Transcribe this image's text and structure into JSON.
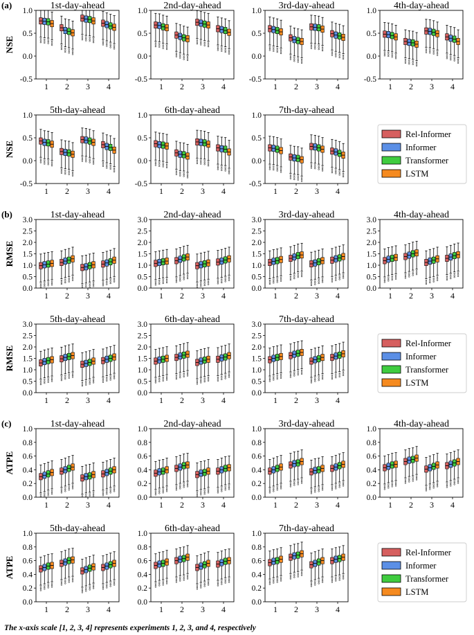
{
  "panel_labels": [
    "(a)",
    "(b)",
    "(c)"
  ],
  "footnote": "The x-axis scale [1, 2, 3, 4] represents experiments 1, 2, 3, and 4, respectively",
  "legend": [
    "Rel-Informer",
    "Informer",
    "Transformer",
    "LSTM"
  ],
  "colors": {
    "Rel-Informer": "#d65f5f",
    "Informer": "#5b8fe6",
    "Transformer": "#3fcc3f",
    "LSTM": "#f58a1f"
  },
  "chart_data": [
    {
      "type": "box",
      "metric": "NSE",
      "ylabel": "NSE",
      "ylim": [
        -0.5,
        1.0
      ],
      "yticks": [
        "-0.5",
        "0.0",
        "0.5",
        "1.0"
      ],
      "x": [
        "1",
        "2",
        "3",
        "4"
      ],
      "series_names": [
        "Rel-Informer",
        "Informer",
        "Transformer",
        "LSTM"
      ],
      "subplots": [
        {
          "title": "1st-day-ahead",
          "medians": [
            [
              0.77,
              0.76,
              0.75,
              0.71
            ],
            [
              0.62,
              0.56,
              0.54,
              0.51
            ],
            [
              0.83,
              0.81,
              0.8,
              0.77
            ],
            [
              0.72,
              0.69,
              0.66,
              0.63
            ]
          ]
        },
        {
          "title": "2nd-day-ahead",
          "medians": [
            [
              0.68,
              0.67,
              0.64,
              0.62
            ],
            [
              0.46,
              0.43,
              0.4,
              0.38
            ],
            [
              0.74,
              0.72,
              0.7,
              0.68
            ],
            [
              0.6,
              0.58,
              0.56,
              0.52
            ]
          ]
        },
        {
          "title": "3rd-day-ahead",
          "medians": [
            [
              0.6,
              0.58,
              0.56,
              0.53
            ],
            [
              0.4,
              0.36,
              0.34,
              0.32
            ],
            [
              0.64,
              0.63,
              0.62,
              0.59
            ],
            [
              0.49,
              0.46,
              0.44,
              0.41
            ]
          ]
        },
        {
          "title": "4th-day-ahead",
          "medians": [
            [
              0.48,
              0.47,
              0.45,
              0.42
            ],
            [
              0.32,
              0.3,
              0.29,
              0.26
            ],
            [
              0.55,
              0.54,
              0.52,
              0.49
            ],
            [
              0.42,
              0.39,
              0.37,
              0.32
            ]
          ]
        },
        {
          "title": "5th-day-ahead",
          "medians": [
            [
              0.43,
              0.4,
              0.39,
              0.36
            ],
            [
              0.2,
              0.18,
              0.17,
              0.14
            ],
            [
              0.46,
              0.45,
              0.43,
              0.4
            ],
            [
              0.35,
              0.31,
              0.29,
              0.23
            ]
          ]
        },
        {
          "title": "6th-day-ahead",
          "medians": [
            [
              0.37,
              0.35,
              0.34,
              0.32
            ],
            [
              0.17,
              0.14,
              0.13,
              0.1
            ],
            [
              0.41,
              0.4,
              0.39,
              0.36
            ],
            [
              0.28,
              0.26,
              0.25,
              0.19
            ]
          ]
        },
        {
          "title": "7th-day-ahead",
          "medians": [
            [
              0.28,
              0.27,
              0.25,
              0.22
            ],
            [
              0.08,
              0.06,
              0.05,
              0.02
            ],
            [
              0.31,
              0.3,
              0.28,
              0.25
            ],
            [
              0.21,
              0.19,
              0.16,
              0.12
            ]
          ]
        }
      ]
    },
    {
      "type": "box",
      "metric": "RMSE",
      "ylabel": "RMSE",
      "ylim": [
        0.0,
        3.0
      ],
      "yticks": [
        "0.0",
        "0.5",
        "1.0",
        "1.5",
        "2.0",
        "2.5",
        "3.0"
      ],
      "x": [
        "1",
        "2",
        "3",
        "4"
      ],
      "series_names": [
        "Rel-Informer",
        "Informer",
        "Transformer",
        "LSTM"
      ],
      "subplots": [
        {
          "title": "1st-day-ahead",
          "medians": [
            [
              0.98,
              1.02,
              1.05,
              1.08
            ],
            [
              1.12,
              1.18,
              1.22,
              1.28
            ],
            [
              0.9,
              0.93,
              0.98,
              1.02
            ],
            [
              1.05,
              1.1,
              1.15,
              1.22
            ]
          ]
        },
        {
          "title": "2nd-day-ahead",
          "medians": [
            [
              1.08,
              1.12,
              1.15,
              1.18
            ],
            [
              1.2,
              1.26,
              1.32,
              1.36
            ],
            [
              0.98,
              1.02,
              1.06,
              1.1
            ],
            [
              1.14,
              1.18,
              1.23,
              1.28
            ]
          ]
        },
        {
          "title": "3rd-day-ahead",
          "medians": [
            [
              1.12,
              1.17,
              1.2,
              1.25
            ],
            [
              1.3,
              1.36,
              1.42,
              1.45
            ],
            [
              1.06,
              1.1,
              1.15,
              1.2
            ],
            [
              1.22,
              1.28,
              1.32,
              1.38
            ]
          ]
        },
        {
          "title": "4th-day-ahead",
          "medians": [
            [
              1.2,
              1.26,
              1.3,
              1.34
            ],
            [
              1.38,
              1.44,
              1.5,
              1.54
            ],
            [
              1.12,
              1.18,
              1.22,
              1.28
            ],
            [
              1.3,
              1.36,
              1.42,
              1.46
            ]
          ]
        },
        {
          "title": "5th-day-ahead",
          "medians": [
            [
              1.3,
              1.36,
              1.4,
              1.44
            ],
            [
              1.48,
              1.54,
              1.58,
              1.62
            ],
            [
              1.24,
              1.28,
              1.32,
              1.38
            ],
            [
              1.4,
              1.46,
              1.5,
              1.56
            ]
          ]
        },
        {
          "title": "6th-day-ahead",
          "medians": [
            [
              1.38,
              1.43,
              1.46,
              1.5
            ],
            [
              1.54,
              1.6,
              1.64,
              1.68
            ],
            [
              1.32,
              1.38,
              1.42,
              1.46
            ],
            [
              1.46,
              1.52,
              1.56,
              1.62
            ]
          ]
        },
        {
          "title": "7th-day-ahead",
          "medians": [
            [
              1.44,
              1.5,
              1.54,
              1.58
            ],
            [
              1.62,
              1.68,
              1.72,
              1.76
            ],
            [
              1.38,
              1.44,
              1.48,
              1.54
            ],
            [
              1.54,
              1.6,
              1.64,
              1.7
            ]
          ]
        }
      ]
    },
    {
      "type": "box",
      "metric": "ATPE",
      "ylabel": "ATPE",
      "ylim": [
        0.0,
        1.0
      ],
      "yticks": [
        "0.0",
        "0.2",
        "0.4",
        "0.6",
        "0.8",
        "1.0"
      ],
      "x": [
        "1",
        "2",
        "3",
        "4"
      ],
      "series_names": [
        "Rel-Informer",
        "Informer",
        "Transformer",
        "LSTM"
      ],
      "subplots": [
        {
          "title": "1st-day-ahead",
          "medians": [
            [
              0.3,
              0.32,
              0.34,
              0.36
            ],
            [
              0.38,
              0.4,
              0.42,
              0.44
            ],
            [
              0.28,
              0.3,
              0.31,
              0.33
            ],
            [
              0.34,
              0.36,
              0.38,
              0.4
            ]
          ]
        },
        {
          "title": "2nd-day-ahead",
          "medians": [
            [
              0.35,
              0.37,
              0.38,
              0.4
            ],
            [
              0.42,
              0.44,
              0.46,
              0.47
            ],
            [
              0.33,
              0.35,
              0.36,
              0.38
            ],
            [
              0.38,
              0.4,
              0.42,
              0.43
            ]
          ]
        },
        {
          "title": "3rd-day-ahead",
          "medians": [
            [
              0.38,
              0.4,
              0.42,
              0.44
            ],
            [
              0.47,
              0.49,
              0.5,
              0.52
            ],
            [
              0.37,
              0.39,
              0.4,
              0.42
            ],
            [
              0.42,
              0.44,
              0.46,
              0.48
            ]
          ]
        },
        {
          "title": "4th-day-ahead",
          "medians": [
            [
              0.43,
              0.45,
              0.47,
              0.48
            ],
            [
              0.52,
              0.54,
              0.55,
              0.57
            ],
            [
              0.41,
              0.43,
              0.45,
              0.47
            ],
            [
              0.46,
              0.48,
              0.5,
              0.52
            ]
          ]
        },
        {
          "title": "5th-day-ahead",
          "medians": [
            [
              0.48,
              0.5,
              0.52,
              0.53
            ],
            [
              0.56,
              0.58,
              0.6,
              0.61
            ],
            [
              0.45,
              0.47,
              0.49,
              0.51
            ],
            [
              0.5,
              0.52,
              0.54,
              0.56
            ]
          ]
        },
        {
          "title": "6th-day-ahead",
          "medians": [
            [
              0.53,
              0.55,
              0.56,
              0.58
            ],
            [
              0.6,
              0.62,
              0.63,
              0.65
            ],
            [
              0.5,
              0.52,
              0.54,
              0.56
            ],
            [
              0.55,
              0.57,
              0.59,
              0.6
            ]
          ]
        },
        {
          "title": "7th-day-ahead",
          "medians": [
            [
              0.57,
              0.59,
              0.6,
              0.62
            ],
            [
              0.65,
              0.67,
              0.68,
              0.7
            ],
            [
              0.54,
              0.56,
              0.58,
              0.6
            ],
            [
              0.6,
              0.62,
              0.63,
              0.65
            ]
          ]
        }
      ]
    }
  ]
}
